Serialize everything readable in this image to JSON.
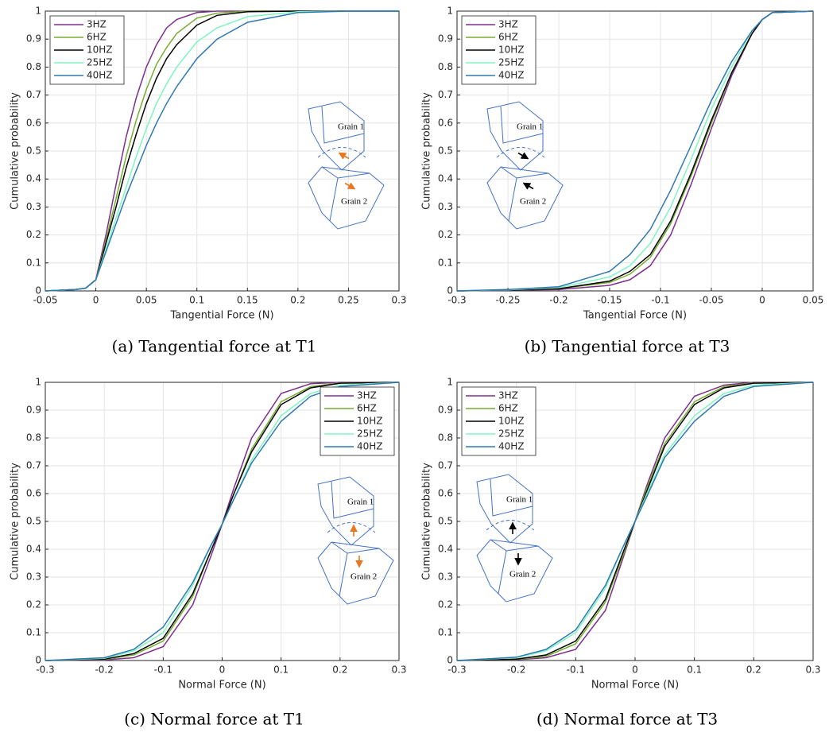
{
  "chart_data": [
    {
      "type": "line",
      "caption": "(a) Tangential force at T1",
      "xlabel": "Tangential Force (N)",
      "ylabel": "Cumulative probability",
      "x": [
        -0.05,
        -0.02,
        -0.01,
        0,
        0.01,
        0.02,
        0.03,
        0.04,
        0.05,
        0.06,
        0.07,
        0.08,
        0.1,
        0.12,
        0.15,
        0.2,
        0.25,
        0.3
      ],
      "series": [
        {
          "name": "3HZ",
          "color": "#7e2f8e",
          "values": [
            0,
            0.005,
            0.01,
            0.04,
            0.2,
            0.38,
            0.55,
            0.69,
            0.8,
            0.88,
            0.94,
            0.97,
            0.995,
            1,
            1,
            1,
            1,
            1
          ]
        },
        {
          "name": "6HZ",
          "color": "#77ac30",
          "values": [
            0,
            0.005,
            0.01,
            0.04,
            0.18,
            0.33,
            0.48,
            0.61,
            0.72,
            0.81,
            0.87,
            0.92,
            0.975,
            0.993,
            1,
            1,
            1,
            1
          ]
        },
        {
          "name": "10HZ",
          "color": "#000000",
          "values": [
            0,
            0.005,
            0.01,
            0.04,
            0.17,
            0.3,
            0.44,
            0.56,
            0.67,
            0.76,
            0.83,
            0.88,
            0.95,
            0.985,
            0.998,
            1,
            1,
            1
          ]
        },
        {
          "name": "25HZ",
          "color": "#7ef5c0",
          "values": [
            0,
            0.005,
            0.01,
            0.04,
            0.15,
            0.26,
            0.37,
            0.48,
            0.58,
            0.67,
            0.74,
            0.8,
            0.89,
            0.94,
            0.98,
            0.998,
            1,
            1
          ]
        },
        {
          "name": "40HZ",
          "color": "#2f78b4",
          "values": [
            0,
            0.005,
            0.01,
            0.04,
            0.14,
            0.24,
            0.34,
            0.43,
            0.52,
            0.6,
            0.67,
            0.73,
            0.83,
            0.9,
            0.96,
            0.995,
            1,
            1
          ]
        }
      ],
      "xlim": [
        -0.05,
        0.3
      ],
      "xticks": [
        -0.05,
        0,
        0.05,
        0.1,
        0.15,
        0.2,
        0.25,
        0.3
      ],
      "ylim": [
        0,
        1
      ],
      "yticks": [
        0,
        0.1,
        0.2,
        0.3,
        0.4,
        0.5,
        0.6,
        0.7,
        0.8,
        0.9,
        1
      ],
      "grid": true,
      "legend": "upper left",
      "annotations": [
        "Grain 1",
        "Grain 2"
      ],
      "inset_arrow_color": "#e87722"
    },
    {
      "type": "line",
      "caption": "(b) Tangential force at T3",
      "xlabel": "Tangential Force (N)",
      "ylabel": "Cumulative probability",
      "x": [
        -0.3,
        -0.25,
        -0.2,
        -0.15,
        -0.13,
        -0.11,
        -0.09,
        -0.07,
        -0.05,
        -0.03,
        -0.01,
        0,
        0.01,
        0.05
      ],
      "series": [
        {
          "name": "3HZ",
          "color": "#7e2f8e",
          "values": [
            0,
            0.002,
            0.005,
            0.02,
            0.04,
            0.09,
            0.2,
            0.38,
            0.58,
            0.77,
            0.92,
            0.97,
            0.995,
            1
          ]
        },
        {
          "name": "6HZ",
          "color": "#77ac30",
          "values": [
            0,
            0.003,
            0.008,
            0.03,
            0.06,
            0.12,
            0.24,
            0.41,
            0.6,
            0.78,
            0.92,
            0.97,
            0.995,
            1
          ]
        },
        {
          "name": "10HZ",
          "color": "#000000",
          "values": [
            0,
            0.003,
            0.008,
            0.035,
            0.07,
            0.13,
            0.25,
            0.42,
            0.61,
            0.78,
            0.92,
            0.97,
            0.995,
            1
          ]
        },
        {
          "name": "25HZ",
          "color": "#7ef5c0",
          "values": [
            0,
            0.004,
            0.012,
            0.05,
            0.09,
            0.17,
            0.3,
            0.47,
            0.65,
            0.8,
            0.93,
            0.97,
            0.995,
            1
          ]
        },
        {
          "name": "40HZ",
          "color": "#2f78b4",
          "values": [
            0,
            0.005,
            0.015,
            0.07,
            0.13,
            0.22,
            0.36,
            0.52,
            0.68,
            0.82,
            0.93,
            0.97,
            0.995,
            1
          ]
        }
      ],
      "xlim": [
        -0.3,
        0.05
      ],
      "xticks": [
        -0.3,
        -0.25,
        -0.2,
        -0.15,
        -0.1,
        -0.05,
        0,
        0.05
      ],
      "ylim": [
        0,
        1
      ],
      "yticks": [
        0,
        0.1,
        0.2,
        0.3,
        0.4,
        0.5,
        0.6,
        0.7,
        0.8,
        0.9,
        1
      ],
      "grid": true,
      "legend": "upper left",
      "annotations": [
        "Grain 1",
        "Grain 2"
      ],
      "inset_arrow_color": "#000000"
    },
    {
      "type": "line",
      "caption": "(c) Normal force at T1",
      "xlabel": "Normal Force (N)",
      "ylabel": "Cumulative probability",
      "x": [
        -0.3,
        -0.2,
        -0.15,
        -0.1,
        -0.05,
        -0.02,
        0,
        0.02,
        0.05,
        0.1,
        0.15,
        0.2,
        0.3
      ],
      "series": [
        {
          "name": "3HZ",
          "color": "#7e2f8e",
          "values": [
            0,
            0.002,
            0.01,
            0.05,
            0.2,
            0.37,
            0.49,
            0.62,
            0.8,
            0.96,
            0.995,
            1,
            1
          ]
        },
        {
          "name": "6HZ",
          "color": "#77ac30",
          "values": [
            0,
            0.004,
            0.02,
            0.07,
            0.23,
            0.39,
            0.49,
            0.6,
            0.76,
            0.93,
            0.985,
            0.998,
            1
          ]
        },
        {
          "name": "10HZ",
          "color": "#000000",
          "values": [
            0,
            0.005,
            0.025,
            0.08,
            0.24,
            0.39,
            0.49,
            0.6,
            0.75,
            0.92,
            0.98,
            0.997,
            1
          ]
        },
        {
          "name": "25HZ",
          "color": "#7ef5c0",
          "values": [
            0,
            0.008,
            0.035,
            0.1,
            0.27,
            0.41,
            0.49,
            0.58,
            0.72,
            0.88,
            0.96,
            0.99,
            1
          ]
        },
        {
          "name": "40HZ",
          "color": "#2f78b4",
          "values": [
            0,
            0.01,
            0.04,
            0.12,
            0.28,
            0.41,
            0.49,
            0.58,
            0.71,
            0.86,
            0.95,
            0.985,
            1
          ]
        }
      ],
      "xlim": [
        -0.3,
        0.3
      ],
      "xticks": [
        -0.3,
        -0.2,
        -0.1,
        0,
        0.1,
        0.2,
        0.3
      ],
      "ylim": [
        0,
        1
      ],
      "yticks": [
        0,
        0.1,
        0.2,
        0.3,
        0.4,
        0.5,
        0.6,
        0.7,
        0.8,
        0.9,
        1
      ],
      "grid": true,
      "legend": "upper right",
      "annotations": [
        "Grain 1",
        "Grain 2"
      ],
      "inset_arrow_color": "#e87722"
    },
    {
      "type": "line",
      "caption": "(d) Normal force at T3",
      "xlabel": "Normal Force (N)",
      "ylabel": "Cumulative probability",
      "x": [
        -0.3,
        -0.2,
        -0.15,
        -0.1,
        -0.05,
        -0.02,
        0,
        0.02,
        0.05,
        0.1,
        0.15,
        0.2,
        0.3
      ],
      "series": [
        {
          "name": "3HZ",
          "color": "#7e2f8e",
          "values": [
            0,
            0.003,
            0.01,
            0.04,
            0.18,
            0.37,
            0.5,
            0.63,
            0.8,
            0.95,
            0.99,
            1,
            1
          ]
        },
        {
          "name": "6HZ",
          "color": "#77ac30",
          "values": [
            0,
            0.004,
            0.015,
            0.06,
            0.21,
            0.38,
            0.5,
            0.62,
            0.78,
            0.93,
            0.985,
            0.998,
            1
          ]
        },
        {
          "name": "10HZ",
          "color": "#000000",
          "values": [
            0,
            0.005,
            0.02,
            0.07,
            0.22,
            0.39,
            0.5,
            0.61,
            0.77,
            0.92,
            0.98,
            0.997,
            1
          ]
        },
        {
          "name": "25HZ",
          "color": "#7ef5c0",
          "values": [
            0,
            0.01,
            0.035,
            0.1,
            0.26,
            0.41,
            0.5,
            0.6,
            0.74,
            0.88,
            0.96,
            0.99,
            1
          ]
        },
        {
          "name": "40HZ",
          "color": "#2f78b4",
          "values": [
            0,
            0.012,
            0.04,
            0.11,
            0.27,
            0.41,
            0.5,
            0.59,
            0.73,
            0.86,
            0.95,
            0.985,
            1
          ]
        }
      ],
      "xlim": [
        -0.3,
        0.3
      ],
      "xticks": [
        -0.3,
        -0.2,
        -0.1,
        0,
        0.1,
        0.2,
        0.3
      ],
      "ylim": [
        0,
        1
      ],
      "yticks": [
        0,
        0.1,
        0.2,
        0.3,
        0.4,
        0.5,
        0.6,
        0.7,
        0.8,
        0.9,
        1
      ],
      "grid": true,
      "legend": "upper left",
      "annotations": [
        "Grain 1",
        "Grain 2"
      ],
      "inset_arrow_color": "#000000"
    }
  ]
}
